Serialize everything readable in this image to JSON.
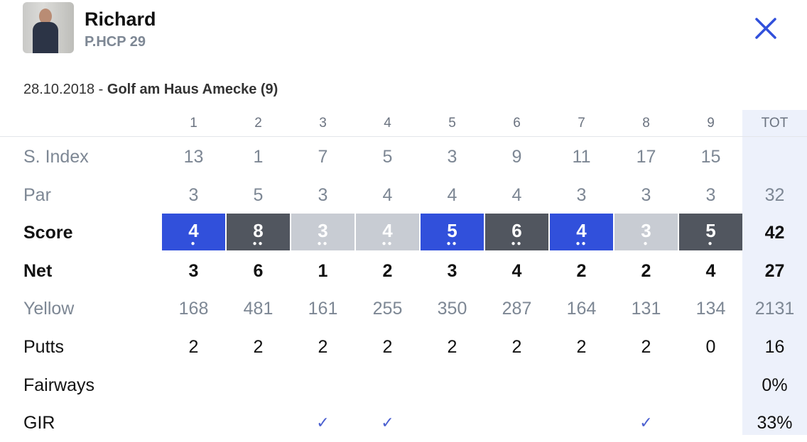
{
  "player": {
    "name": "Richard",
    "hcp": "P.HCP 29"
  },
  "round": {
    "date": "28.10.2018",
    "separator": " - ",
    "course": "Golf am Haus Amecke (9)"
  },
  "colors": {
    "birdie_or_better": "#3150db",
    "bogey_plus": "#51565f",
    "par": "#c8ccd3",
    "total_bg": "#edf1fb",
    "accent": "#3150db"
  },
  "holes": [
    "1",
    "2",
    "3",
    "4",
    "5",
    "6",
    "7",
    "8",
    "9"
  ],
  "total_header": "TOT",
  "rows": {
    "sindex": {
      "label": "S. Index",
      "values": [
        "13",
        "1",
        "7",
        "5",
        "3",
        "9",
        "11",
        "17",
        "15"
      ],
      "total": ""
    },
    "par": {
      "label": "Par",
      "values": [
        "3",
        "5",
        "3",
        "4",
        "4",
        "4",
        "3",
        "3",
        "3"
      ],
      "total": "32"
    },
    "score": {
      "label": "Score",
      "values": [
        "4",
        "8",
        "3",
        "4",
        "5",
        "6",
        "4",
        "3",
        "5"
      ],
      "styles": [
        "blue",
        "dark",
        "light",
        "light",
        "blue",
        "dark",
        "blue",
        "light",
        "dark"
      ],
      "dots": [
        1,
        2,
        2,
        2,
        2,
        2,
        2,
        1,
        1
      ],
      "total": "42"
    },
    "net": {
      "label": "Net",
      "values": [
        "3",
        "6",
        "1",
        "2",
        "3",
        "4",
        "2",
        "2",
        "4"
      ],
      "total": "27"
    },
    "yellow": {
      "label": "Yellow",
      "values": [
        "168",
        "481",
        "161",
        "255",
        "350",
        "287",
        "164",
        "131",
        "134"
      ],
      "total": "2131"
    },
    "putts": {
      "label": "Putts",
      "values": [
        "2",
        "2",
        "2",
        "2",
        "2",
        "2",
        "2",
        "2",
        "0"
      ],
      "total": "16"
    },
    "fairways": {
      "label": "Fairways",
      "values": [
        "",
        "",
        "",
        "",
        "",
        "",
        "",
        "",
        ""
      ],
      "total": "0%"
    },
    "gir": {
      "label": "GIR",
      "values": [
        "",
        "",
        "✓",
        "✓",
        "",
        "",
        "",
        "✓",
        ""
      ],
      "total": "33%"
    }
  },
  "icons": {
    "close": "close-x-icon",
    "avatar": "player-photo"
  }
}
